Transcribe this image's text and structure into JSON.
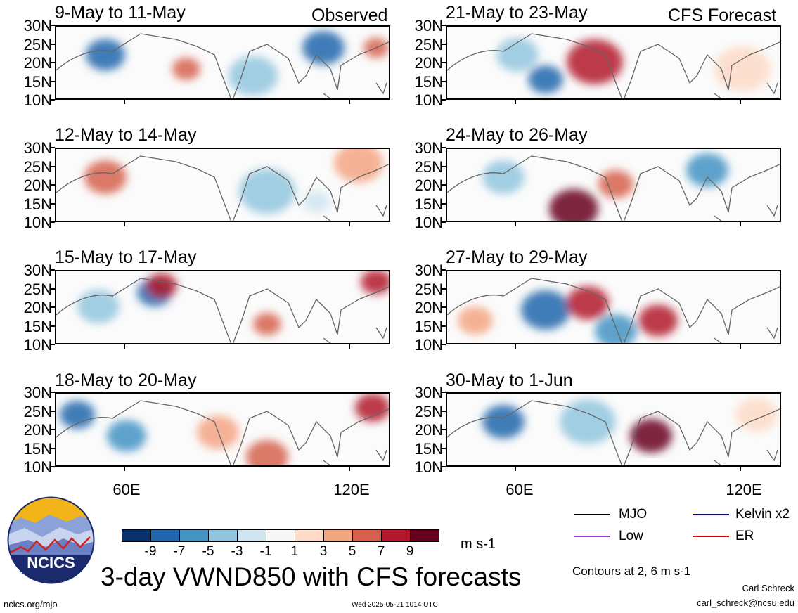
{
  "left_header_label": "Observed",
  "right_header_label": "CFS Forecast",
  "panels_left": [
    {
      "title": "9-May to 11-May"
    },
    {
      "title": "12-May to 14-May"
    },
    {
      "title": "15-May to 17-May"
    },
    {
      "title": "18-May to 20-May"
    }
  ],
  "panels_right": [
    {
      "title": "21-May to 23-May"
    },
    {
      "title": "24-May to 26-May"
    },
    {
      "title": "27-May to 29-May"
    },
    {
      "title": "30-May to 1-Jun"
    }
  ],
  "lat_ticks": [
    "30N",
    "25N",
    "20N",
    "15N",
    "10N"
  ],
  "lon_ticks": [
    "60E",
    "120E"
  ],
  "colorbar": {
    "colors": [
      "#08306b",
      "#2166ac",
      "#4393c3",
      "#92c5de",
      "#d1e5f0",
      "#f7f7f7",
      "#fddbc7",
      "#f4a582",
      "#d6604d",
      "#b2182b",
      "#67001f"
    ],
    "labels": [
      "-9",
      "-7",
      "-5",
      "-3",
      "-1",
      "1",
      "3",
      "5",
      "7",
      "9"
    ],
    "unit": "m s-1"
  },
  "legend": {
    "items": [
      {
        "label": "MJO",
        "color": "#000000"
      },
      {
        "label": "Kelvin x2",
        "color": "#0000cc"
      },
      {
        "label": "Low",
        "color": "#9933cc"
      },
      {
        "label": "ER",
        "color": "#e00000"
      }
    ],
    "contours_note": "Contours at 2, 6 m s-1"
  },
  "logo_text": "NCICS",
  "main_title": "3-day VWND850 with CFS forecasts",
  "footer": {
    "left": "ncics.org/mjo",
    "center": "Wed 2025-05-21 1014 UTC",
    "author": "Carl Schreck",
    "email": "carl_schreck@ncsu.edu"
  }
}
